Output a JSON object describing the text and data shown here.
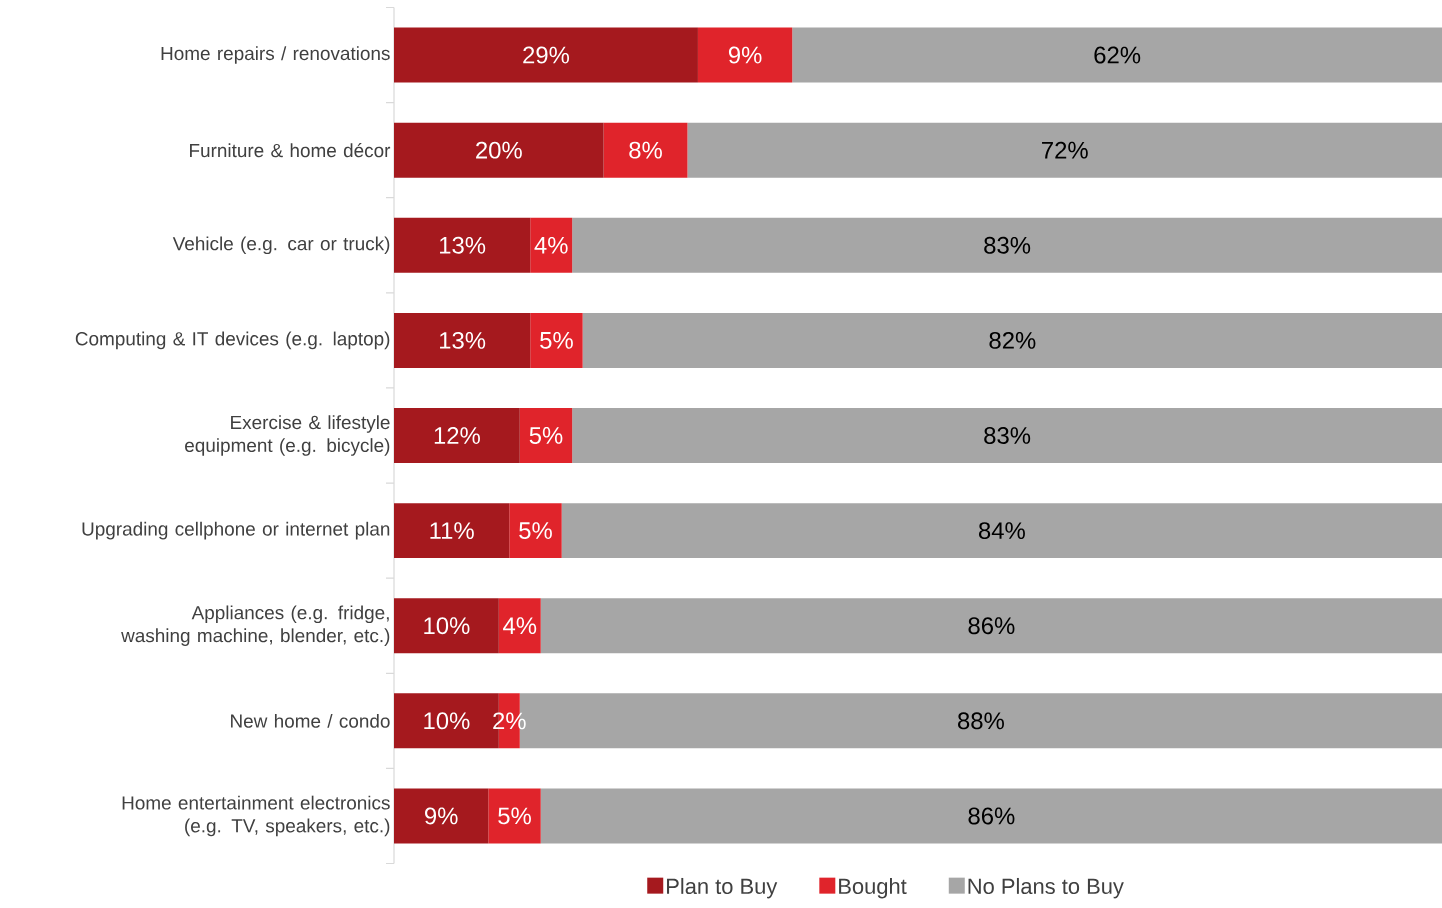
{
  "chart_data": {
    "type": "bar",
    "orientation": "horizontal",
    "stacked": true,
    "legend": "bottom",
    "tick_labels": "y",
    "categories": [
      "Home repairs / renovations",
      "Furniture & home décor",
      "Vehicle (e.g. car or truck)",
      "Computing & IT devices (e.g. laptop)",
      "Exercise & lifestyle equipment (e.g. bicycle)",
      "Upgrading cellphone or internet plan",
      "Appliances (e.g. fridge, washing machine, blender, etc.)",
      "New home / condo",
      "Home entertainment electronics (e.g. TV, speakers, etc.)"
    ],
    "series": [
      {
        "name": "Plan to Buy",
        "color": "#a5191e",
        "values": [
          29,
          20,
          13,
          13,
          12,
          11,
          10,
          10,
          9
        ],
        "value_labels": [
          "29%",
          "20%",
          "13%",
          "13%",
          "12%",
          "11%",
          "10%",
          "10%",
          "9%"
        ]
      },
      {
        "name": "Bought",
        "color": "#e0242b",
        "values": [
          9,
          8,
          4,
          5,
          5,
          5,
          4,
          2,
          5
        ],
        "value_labels": [
          "9%",
          "8%",
          "4%",
          "5%",
          "5%",
          "5%",
          "4%",
          "2%",
          "5%"
        ]
      },
      {
        "name": "No Plans to Buy",
        "color": "#a6a6a6",
        "values": [
          62,
          72,
          83,
          82,
          83,
          84,
          86,
          88,
          86
        ],
        "value_labels": [
          "62%",
          "72%",
          "83%",
          "82%",
          "83%",
          "84%",
          "86%",
          "88%",
          "86%"
        ]
      }
    ]
  }
}
